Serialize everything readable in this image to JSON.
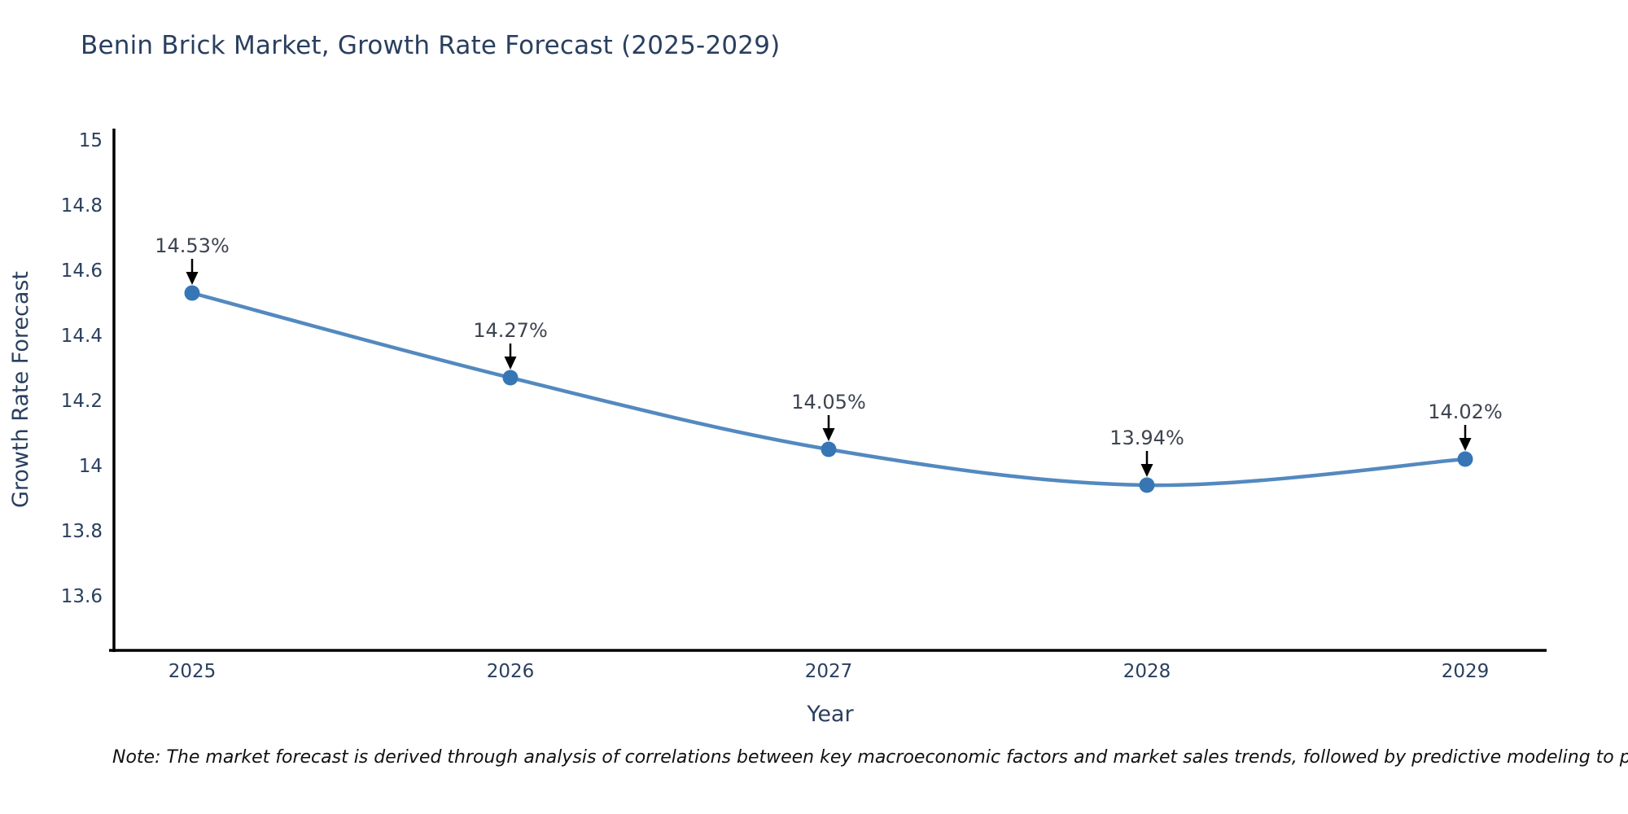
{
  "title": "Benin Brick Market, Growth Rate Forecast (2025-2029)",
  "note": "Note: The market forecast is derived through analysis of correlations between key macroeconomic factors and market sales trends, followed by predictive modeling to project future sal",
  "chart_data": {
    "type": "line",
    "title": "Benin Brick Market, Growth Rate Forecast (2025-2029)",
    "xlabel": "Year",
    "ylabel": "Growth Rate Forecast",
    "categories": [
      "2025",
      "2026",
      "2027",
      "2028",
      "2029"
    ],
    "series": [
      {
        "name": "Growth Rate Forecast",
        "values": [
          14.53,
          14.27,
          14.05,
          13.94,
          14.02
        ]
      }
    ],
    "point_labels": [
      "14.53%",
      "14.27%",
      "14.05%",
      "13.94%",
      "14.02%"
    ],
    "y_ticks": [
      15,
      14.8,
      14.6,
      14.4,
      14.2,
      14,
      13.8,
      13.6
    ],
    "ylim": [
      13.43,
      15.04
    ],
    "grid": false,
    "legend": "none",
    "line_shape": "spline",
    "marker": "circle",
    "annotation_arrows": true,
    "colors": {
      "line": "#5389bf",
      "marker": "#3776b5",
      "axis_line": "#000000",
      "tick_text": "#2a3f5f",
      "title_text": "#2a3f5f",
      "annotation_text": "#3d4450",
      "arrow": "#000000",
      "note_text": "#111111",
      "background": "#ffffff"
    }
  }
}
